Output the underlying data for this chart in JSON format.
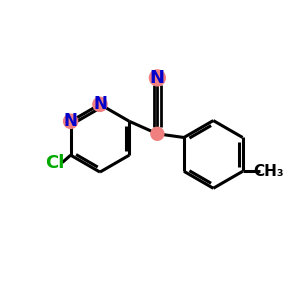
{
  "background_color": "#ffffff",
  "bond_color": "#000000",
  "n_color": "#0000cd",
  "cl_color": "#00aa00",
  "highlight_color": "#f08080",
  "bond_width": 2.2,
  "fig_size": [
    3.0,
    3.0
  ],
  "dpi": 100,
  "xlim": [
    0,
    10
  ],
  "ylim": [
    0,
    10
  ]
}
